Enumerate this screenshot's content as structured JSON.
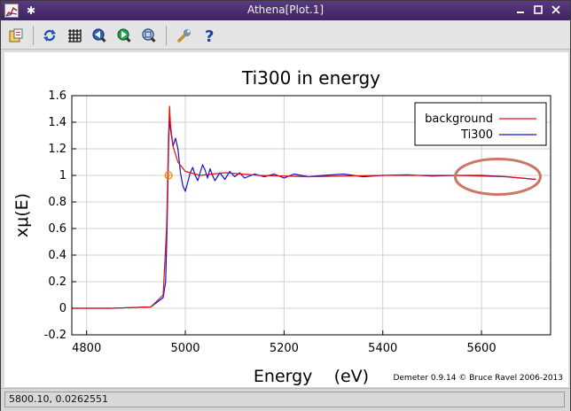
{
  "window": {
    "title": "Athena[Plot.1]"
  },
  "toolbar": {
    "icons": [
      "open-file-icon",
      "refresh-icon",
      "grid-icon",
      "zoom-in-icon",
      "zoom-out-icon",
      "zoom-fit-icon",
      "settings-wrench-icon",
      "help-icon"
    ]
  },
  "plot": {
    "credit": "Demeter 0.9.14 © Bruce Ravel 2006-2013"
  },
  "chart_data": {
    "type": "line",
    "title": "Ti300 in energy",
    "xlabel": "Energy    (eV)",
    "ylabel": "xμ(E)",
    "xlim": [
      4770,
      5740
    ],
    "ylim": [
      -0.2,
      1.6
    ],
    "xticks": [
      4800,
      5000,
      5200,
      5400,
      5600
    ],
    "yticks": [
      -0.2,
      0,
      0.2,
      0.4,
      0.6,
      0.8,
      1,
      1.2,
      1.4,
      1.6
    ],
    "grid": true,
    "legend_position": "top-right",
    "marker_point": {
      "x": 4966,
      "y": 1.0
    },
    "series": [
      {
        "name": "background",
        "color": "#e01010",
        "x": [
          4770,
          4850,
          4930,
          4955,
          4962,
          4966,
          4968,
          4970,
          4975,
          4985,
          5000,
          5030,
          5080,
          5150,
          5250,
          5400,
          5550,
          5650,
          5710
        ],
        "y": [
          0.0,
          0.0,
          0.01,
          0.1,
          0.6,
          1.3,
          1.52,
          1.38,
          1.22,
          1.1,
          1.03,
          1.0,
          1.02,
          1.0,
          0.99,
          1.0,
          1.0,
          0.99,
          0.97
        ]
      },
      {
        "name": "Ti300",
        "color": "#1010d0",
        "x": [
          4770,
          4850,
          4930,
          4955,
          4960,
          4963,
          4966,
          4968,
          4970,
          4975,
          4980,
          4985,
          4990,
          4995,
          5000,
          5005,
          5010,
          5015,
          5020,
          5025,
          5030,
          5035,
          5040,
          5045,
          5050,
          5055,
          5060,
          5070,
          5080,
          5090,
          5100,
          5110,
          5120,
          5140,
          5160,
          5180,
          5200,
          5220,
          5250,
          5280,
          5320,
          5360,
          5400,
          5450,
          5500,
          5550,
          5600,
          5650,
          5710
        ],
        "y": [
          0.0,
          0.0,
          0.01,
          0.08,
          0.2,
          0.6,
          1.2,
          1.45,
          1.35,
          1.22,
          1.28,
          1.2,
          1.02,
          0.92,
          0.88,
          0.95,
          1.02,
          1.06,
          1.0,
          0.96,
          1.02,
          1.08,
          1.04,
          0.98,
          1.05,
          1.0,
          0.96,
          1.02,
          0.97,
          1.03,
          0.99,
          1.02,
          0.98,
          1.01,
          0.99,
          1.01,
          0.98,
          1.01,
          0.99,
          1.0,
          1.01,
          0.99,
          1.0,
          1.005,
          0.995,
          1.0,
          1.0,
          0.99,
          0.97
        ]
      }
    ],
    "annotation": {
      "type": "ellipse",
      "color": "#c87864"
    }
  },
  "statusbar": {
    "text": "5800.10,  0.0262551"
  }
}
